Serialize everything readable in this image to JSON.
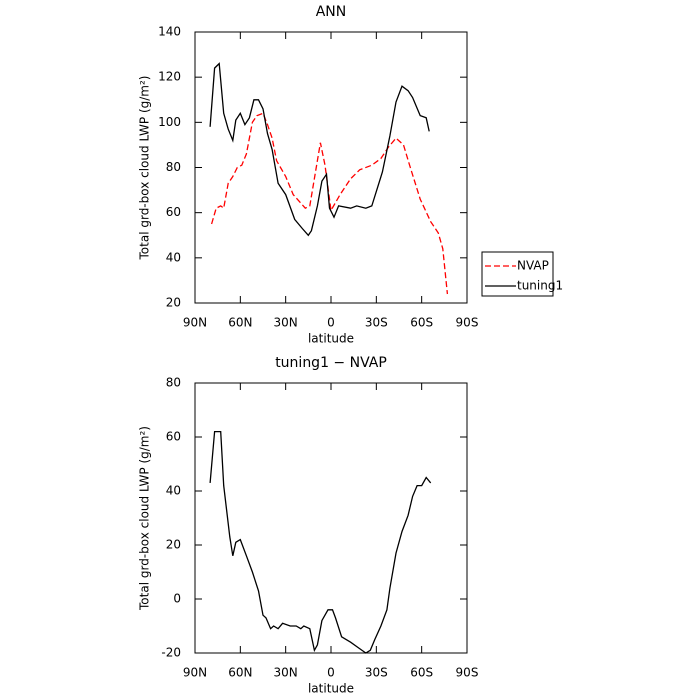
{
  "chart_data": [
    {
      "type": "line",
      "title": "ANN",
      "xlabel": "latitude",
      "ylabel": "Total grd-box cloud LWP (g/m²)",
      "xlim": [
        90,
        -90
      ],
      "xticks": [
        {
          "value": 90,
          "label": "90N"
        },
        {
          "value": 60,
          "label": "60N"
        },
        {
          "value": 30,
          "label": "30N"
        },
        0,
        {
          "value": -30,
          "label": "30S"
        },
        {
          "value": -60,
          "label": "60S"
        },
        {
          "value": -90,
          "label": "90S"
        }
      ],
      "ylim": [
        20,
        140
      ],
      "yticks": [
        20,
        40,
        60,
        80,
        100,
        120,
        140
      ],
      "legend": "right",
      "series": [
        {
          "name": "NVAP",
          "color": "#ff0000",
          "dash": "dashed",
          "x": [
            79,
            76,
            73,
            71,
            68,
            65,
            62,
            59,
            56,
            52,
            49,
            45,
            42,
            39,
            36,
            30,
            25,
            17,
            14,
            7,
            4,
            0,
            -6,
            -13,
            -19,
            -27,
            -33,
            -38,
            -43,
            -48,
            -52,
            -59,
            -66,
            -71,
            -74,
            -77
          ],
          "values": [
            55,
            62,
            63,
            62,
            73,
            76,
            80,
            81,
            86,
            100,
            103,
            104,
            99,
            93,
            83,
            76,
            68,
            62,
            63,
            91,
            81,
            61,
            68,
            75,
            79,
            81,
            84,
            89,
            93,
            90,
            81,
            66,
            56,
            51,
            44,
            24
          ]
        },
        {
          "name": "tuning1",
          "color": "#000000",
          "dash": "solid",
          "x": [
            80,
            77,
            74,
            71,
            68,
            65,
            63,
            60,
            57,
            54,
            51,
            48,
            45,
            42,
            39,
            35,
            30,
            24,
            19,
            15,
            13,
            9,
            6,
            3,
            1,
            -2,
            -5,
            -13,
            -17,
            -23,
            -27,
            -34,
            -39,
            -43,
            -47,
            -51,
            -54,
            -59,
            -63,
            -65
          ],
          "values": [
            98,
            124,
            126,
            104,
            97,
            92,
            101,
            104,
            99,
            102,
            110,
            110,
            106,
            95,
            88,
            73,
            68,
            57,
            53,
            50,
            52,
            63,
            74,
            77,
            62,
            58,
            63,
            62,
            63,
            62,
            63,
            78,
            94,
            109,
            116,
            114,
            111,
            103,
            102,
            96
          ]
        }
      ]
    },
    {
      "type": "line",
      "title": "tuning1 − NVAP",
      "xlabel": "latitude",
      "ylabel": "Total grd-box cloud LWP (g/m²)",
      "xlim": [
        90,
        -90
      ],
      "xticks": [
        {
          "value": 90,
          "label": "90N"
        },
        {
          "value": 60,
          "label": "60N"
        },
        {
          "value": 30,
          "label": "30N"
        },
        0,
        {
          "value": -30,
          "label": "30S"
        },
        {
          "value": -60,
          "label": "60S"
        },
        {
          "value": -90,
          "label": "90S"
        }
      ],
      "ylim": [
        -20,
        80
      ],
      "yticks": [
        -20,
        0,
        20,
        40,
        60,
        80
      ],
      "series": [
        {
          "color": "#000000",
          "dash": "solid",
          "x": [
            80,
            77,
            73,
            71,
            67,
            65,
            63,
            60,
            56,
            52,
            48,
            45,
            43,
            40,
            38,
            35,
            32,
            27,
            23,
            20,
            18,
            14,
            11,
            9,
            6,
            2,
            -1,
            -3,
            -7,
            -13,
            -18,
            -23,
            -26,
            -29,
            -33,
            -37,
            -39,
            -43,
            -47,
            -51,
            -54,
            -57,
            -60,
            -63,
            -66
          ],
          "values": [
            43,
            62,
            62,
            42,
            23,
            16,
            21,
            22,
            16,
            10,
            3,
            -6,
            -7,
            -11,
            -10,
            -11,
            -9,
            -10,
            -10,
            -11,
            -10,
            -11,
            -19,
            -17,
            -8,
            -4,
            -4,
            -7,
            -14,
            -16,
            -18,
            -20,
            -19,
            -15,
            -10,
            -4,
            4,
            17,
            25,
            31,
            38,
            42,
            42,
            45,
            43
          ]
        }
      ]
    }
  ]
}
